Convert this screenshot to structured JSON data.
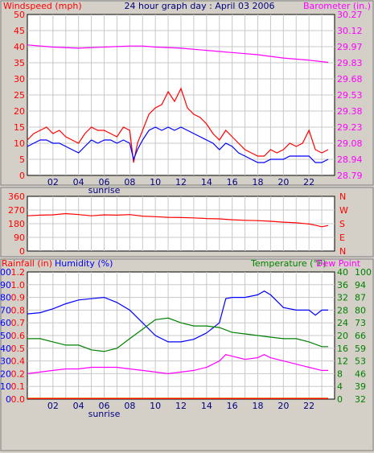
{
  "colors": {
    "background": "#d4d0c8",
    "plot_bg": "#ffffff",
    "grid": "#c8c8c8",
    "red": "#ff0000",
    "blue": "#0000ff",
    "magenta": "#ff00ff",
    "green": "#008000",
    "gold": "#c8a000",
    "navy": "#000080"
  },
  "chart_data": [
    {
      "panel": "wind-barometer",
      "type": "line",
      "title": "24 hour graph day : April 03 2006",
      "left_label": "Windspeed (mph)",
      "right_label": "Barometer (in.)",
      "x_ticks": [
        "02",
        "04",
        "06",
        "08",
        "10",
        "12",
        "14",
        "16",
        "18",
        "20",
        "22"
      ],
      "x_annotation": "sunrise",
      "x_range": [
        0,
        24
      ],
      "y_left_range": [
        0,
        50
      ],
      "y_left_ticks": [
        "0",
        "5",
        "10",
        "15",
        "20",
        "25",
        "30",
        "35",
        "40",
        "45",
        "50"
      ],
      "y_right_range": [
        28.79,
        30.27
      ],
      "y_right_ticks": [
        "28.79",
        "28.94",
        "29.08",
        "29.23",
        "29.38",
        "29.53",
        "29.68",
        "29.83",
        "29.97",
        "30.12",
        "30.27"
      ],
      "series": [
        {
          "axis": "left",
          "color": "#ff0000",
          "x": [
            0,
            0.5,
            1,
            1.5,
            2,
            2.5,
            3,
            3.5,
            4,
            4.5,
            5,
            5.5,
            6,
            6.5,
            7,
            7.5,
            8,
            8.3,
            8.6,
            9,
            9.5,
            10,
            10.5,
            11,
            11.5,
            12,
            12.5,
            13,
            13.5,
            14,
            14.5,
            15,
            15.5,
            16,
            16.5,
            17,
            17.5,
            18,
            18.5,
            19,
            19.5,
            20,
            20.5,
            21,
            21.5,
            22,
            22.5,
            23,
            23.5
          ],
          "y": [
            11,
            13,
            14,
            15,
            13,
            14,
            12,
            11,
            10,
            13,
            15,
            14,
            14,
            13,
            12,
            15,
            14,
            4,
            10,
            14,
            19,
            21,
            22,
            26,
            23,
            27,
            21,
            19,
            18,
            16,
            13,
            11,
            14,
            12,
            10,
            8,
            7,
            6,
            6,
            8,
            7,
            8,
            10,
            9,
            10,
            14,
            8,
            7,
            8
          ]
        },
        {
          "axis": "left",
          "color": "#0000ff",
          "x": [
            0,
            0.5,
            1,
            1.5,
            2,
            2.5,
            3,
            3.5,
            4,
            4.5,
            5,
            5.5,
            6,
            6.5,
            7,
            7.5,
            8,
            8.3,
            8.6,
            9,
            9.5,
            10,
            10.5,
            11,
            11.5,
            12,
            12.5,
            13,
            13.5,
            14,
            14.5,
            15,
            15.5,
            16,
            16.5,
            17,
            17.5,
            18,
            18.5,
            19,
            19.5,
            20,
            20.5,
            21,
            21.5,
            22,
            22.5,
            23,
            23.5
          ],
          "y": [
            9,
            10,
            11,
            11,
            10,
            10,
            9,
            8,
            7,
            9,
            11,
            10,
            11,
            11,
            10,
            11,
            10,
            5,
            8,
            11,
            14,
            15,
            14,
            15,
            14,
            15,
            14,
            13,
            12,
            11,
            10,
            8,
            10,
            9,
            7,
            6,
            5,
            4,
            4,
            5,
            5,
            5,
            6,
            6,
            6,
            6,
            4,
            4,
            5
          ]
        },
        {
          "axis": "right",
          "color": "#ff00ff",
          "x": [
            0,
            2,
            4,
            6,
            8,
            9,
            10,
            12,
            14,
            16,
            18,
            20,
            22,
            23.5
          ],
          "y": [
            29.99,
            29.97,
            29.96,
            29.97,
            29.98,
            29.98,
            29.97,
            29.96,
            29.94,
            29.92,
            29.9,
            29.87,
            29.85,
            29.83
          ]
        }
      ]
    },
    {
      "panel": "wind-direction",
      "type": "line",
      "x_range": [
        0,
        24
      ],
      "y_left_range": [
        0,
        360
      ],
      "y_left_ticks": [
        "0",
        "90",
        "180",
        "270",
        "360"
      ],
      "y_right_ticks": [
        "N",
        "E",
        "S",
        "W",
        "N"
      ],
      "series": [
        {
          "axis": "left",
          "color": "#ff0000",
          "x": [
            0,
            1,
            2,
            3,
            4,
            5,
            6,
            7,
            8,
            9,
            10,
            11,
            12,
            13,
            14,
            15,
            16,
            17,
            18,
            19,
            20,
            21,
            22,
            22.5,
            23,
            23.5
          ],
          "y": [
            232,
            236,
            238,
            246,
            240,
            232,
            238,
            236,
            240,
            230,
            226,
            222,
            220,
            218,
            214,
            212,
            206,
            202,
            200,
            196,
            190,
            186,
            178,
            170,
            160,
            168
          ]
        }
      ]
    },
    {
      "panel": "rain-humidity-temp",
      "type": "line",
      "left_label_1": "Rainfall (in)",
      "left_label_2": "Humidity (%)",
      "right_label_1": "Temperature (°F)",
      "right_label_2": "Dew Point",
      "x_ticks": [
        "02",
        "04",
        "06",
        "08",
        "10",
        "12",
        "14",
        "16",
        "18",
        "20",
        "22"
      ],
      "x_annotation": "sunrise",
      "x_range": [
        0,
        24
      ],
      "y_humidity_range": [
        0,
        100
      ],
      "y_humidity_ticks": [
        "0",
        "10",
        "20",
        "30",
        "40",
        "50",
        "60",
        "70",
        "80",
        "90",
        "100"
      ],
      "y_rain_ticks": [
        "0.0",
        "0.1",
        "0.2",
        "0.4",
        "0.5",
        "0.6",
        "0.7",
        "0.8",
        "0.9",
        "1.0",
        "1.2"
      ],
      "y_temp_range": [
        0,
        40
      ],
      "y_temp_ticks": [
        "0",
        "4",
        "8",
        "12",
        "16",
        "20",
        "24",
        "28",
        "32",
        "36",
        "40"
      ],
      "y_dew_ticks": [
        "32",
        "39",
        "46",
        "53",
        "59",
        "66",
        "73",
        "80",
        "87",
        "94",
        "100"
      ],
      "series": [
        {
          "axis": "humidity",
          "color": "#0000ff",
          "x": [
            0,
            1,
            2,
            3,
            4,
            5,
            6,
            7,
            8,
            9,
            10,
            11,
            12,
            13,
            14,
            14.5,
            15,
            15.5,
            16,
            17,
            18,
            18.5,
            19,
            20,
            21,
            22,
            22.5,
            23,
            23.5
          ],
          "y": [
            67,
            68,
            71,
            75,
            78,
            79,
            80,
            76,
            70,
            60,
            50,
            45,
            45,
            47,
            52,
            56,
            60,
            79,
            80,
            80,
            82,
            85,
            82,
            72,
            70,
            70,
            66,
            70,
            70
          ]
        },
        {
          "axis": "temp",
          "color": "#008000",
          "x": [
            0,
            1,
            2,
            3,
            4,
            5,
            6,
            7,
            8,
            9,
            10,
            11,
            12,
            13,
            14,
            15,
            16,
            17,
            18,
            19,
            20,
            21,
            22,
            23,
            23.5
          ],
          "y": [
            19,
            19,
            18,
            17,
            17,
            15.5,
            15,
            16,
            19,
            22,
            25,
            25.5,
            24,
            23,
            23,
            22.5,
            21,
            20.5,
            20,
            19.5,
            19,
            19,
            18,
            16.5,
            16.5
          ]
        },
        {
          "axis": "temp",
          "color": "#ff00ff",
          "x": [
            0,
            1,
            2,
            3,
            4,
            5,
            6,
            7,
            8,
            9,
            10,
            11,
            12,
            13,
            14,
            15,
            15.5,
            16,
            17,
            18,
            18.5,
            19,
            20,
            21,
            22,
            23,
            23.5
          ],
          "y": [
            8,
            8.5,
            9,
            9.5,
            9.5,
            10,
            10,
            10,
            9.5,
            9,
            8.5,
            8,
            8.5,
            9,
            10,
            12,
            14,
            13.5,
            12.5,
            13,
            14,
            13,
            12,
            11,
            10,
            9,
            9
          ]
        },
        {
          "axis": "temp",
          "color": "#c8a000",
          "x": [
            0,
            23.5
          ],
          "y": [
            0.3,
            0.3
          ]
        },
        {
          "axis": "temp",
          "color": "#ff0000",
          "x": [
            0,
            23.5
          ],
          "y": [
            0.15,
            0.15
          ]
        }
      ]
    }
  ]
}
